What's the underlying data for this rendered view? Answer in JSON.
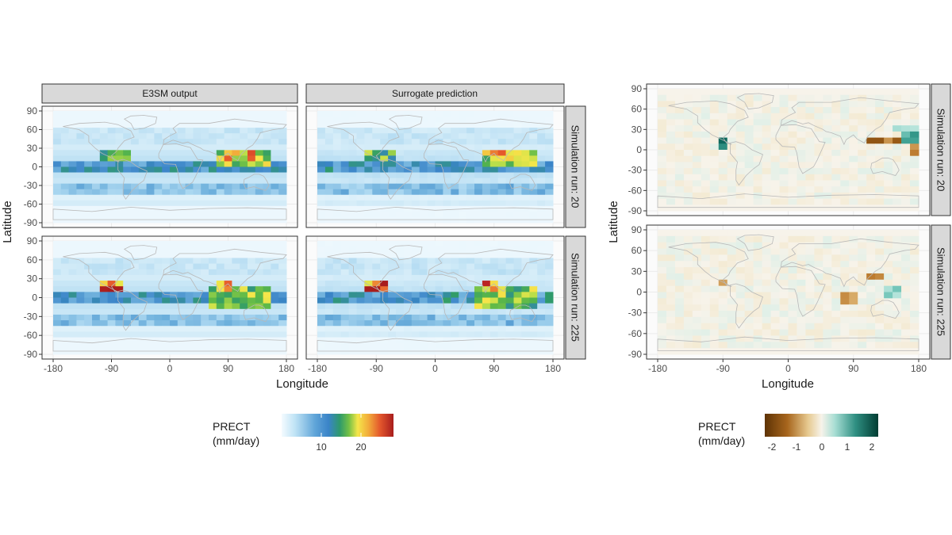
{
  "colors": {
    "panel_bg": "#fbfbfb",
    "grid": "#ebebeb",
    "strip_bg": "#d9d9d9",
    "border": "#333333",
    "coast": "#b8b8b8",
    "abs_scale": [
      "#f4fbff",
      "#d4ecf8",
      "#a9d6f0",
      "#6eb0dc",
      "#3a84c8",
      "#2f9a6b",
      "#5cb848",
      "#bfe04a",
      "#f5e64a",
      "#f2a93a",
      "#e65a2c",
      "#c02626",
      "#a81d1d"
    ],
    "diff_scale_neg": [
      "#f7f3ea",
      "#f1e2bd",
      "#dbb06f",
      "#b9772a",
      "#8a4f0f",
      "#5e3305"
    ],
    "diff_scale_pos": [
      "#f7f3ea",
      "#cbece5",
      "#82cfc3",
      "#3a9d8f",
      "#0e6d62",
      "#013d33"
    ]
  },
  "left_figure": {
    "column_strips": [
      "E3SM output",
      "Surrogate prediction"
    ],
    "row_strips": [
      "Simulation run: 20",
      "Simulation run: 225"
    ],
    "x_label": "Longitude",
    "y_label": "Latitude",
    "legend": {
      "title_line1": "PRECT",
      "title_line2": "(mm/day)",
      "tick_labels": [
        "10",
        "20"
      ]
    }
  },
  "right_figure": {
    "row_strips": [
      "Simulation run: 20",
      "Simulation run: 225"
    ],
    "x_label": "Longitude",
    "y_label": "Latitude",
    "legend": {
      "title_line1": "PRECT",
      "title_line2": "(mm/day)",
      "tick_labels": [
        "-2",
        "-1",
        "0",
        "1",
        "2"
      ]
    }
  },
  "chart_data": [
    {
      "type": "heatmap",
      "variable": "PRECT",
      "units": "mm/day",
      "facet_columns": [
        "E3SM output",
        "Surrogate prediction"
      ],
      "facet_rows": [
        "Simulation run: 20",
        "Simulation run: 225"
      ],
      "xlabel": "Longitude",
      "ylabel": "Latitude",
      "xlim": [
        -180,
        180
      ],
      "ylim": [
        -90,
        90
      ],
      "x_ticks": [
        -180,
        -90,
        0,
        90,
        180
      ],
      "x_tick_labels": [
        "-180",
        "-90",
        "0",
        "90",
        "180"
      ],
      "y_ticks": [
        -90,
        -60,
        -30,
        0,
        30,
        60,
        90
      ],
      "y_tick_labels": [
        "-90",
        "-60",
        "-30",
        "0",
        "30",
        "60",
        "90"
      ],
      "grid": true,
      "legend_position": "bottom",
      "color_limits": [
        0,
        28
      ],
      "legend_ticks": [
        10,
        20
      ],
      "regions": {
        "Simulation run: 20": [
          {
            "lon": [
              -180,
              180
            ],
            "lat": [
              -5,
              5
            ],
            "value": 9
          },
          {
            "lon": [
              -180,
              180
            ],
            "lat": [
              -45,
              -30
            ],
            "value": 6
          },
          {
            "lon": [
              -110,
              -65
            ],
            "lat": [
              5,
              25
            ],
            "value": 14
          },
          {
            "lon": [
              70,
              150
            ],
            "lat": [
              0,
              30
            ],
            "value": 16
          },
          {
            "lon": [
              90,
              130
            ],
            "lat": [
              5,
              25
            ],
            "value": 20
          },
          {
            "lon": [
              -30,
              20
            ],
            "lat": [
              0,
              10
            ],
            "value": 8
          },
          {
            "lon": [
              -180,
              180
            ],
            "lat": [
              35,
              60
            ],
            "value": 3
          }
        ],
        "Simulation run: 225": [
          {
            "lon": [
              -180,
              180
            ],
            "lat": [
              -5,
              5
            ],
            "value": 9
          },
          {
            "lon": [
              -180,
              180
            ],
            "lat": [
              -45,
              -30
            ],
            "value": 6
          },
          {
            "lon": [
              -105,
              -75
            ],
            "lat": [
              5,
              25
            ],
            "value": 24
          },
          {
            "lon": [
              75,
              95
            ],
            "lat": [
              10,
              30
            ],
            "value": 24
          },
          {
            "lon": [
              60,
              160
            ],
            "lat": [
              -15,
              20
            ],
            "value": 15
          },
          {
            "lon": [
              -180,
              180
            ],
            "lat": [
              35,
              60
            ],
            "value": 3
          }
        ]
      }
    },
    {
      "type": "heatmap",
      "variable": "PRECT",
      "units": "mm/day",
      "facet_rows": [
        "Simulation run: 20",
        "Simulation run: 225"
      ],
      "xlabel": "Longitude",
      "ylabel": "Latitude",
      "xlim": [
        -180,
        180
      ],
      "ylim": [
        -90,
        90
      ],
      "x_ticks": [
        -180,
        -90,
        0,
        90,
        180
      ],
      "x_tick_labels": [
        "-180",
        "-90",
        "0",
        "90",
        "180"
      ],
      "y_ticks": [
        -90,
        -60,
        -30,
        0,
        30,
        60,
        90
      ],
      "y_tick_labels": [
        "-90",
        "-60",
        "-30",
        "0",
        "30",
        "60",
        "90"
      ],
      "grid": true,
      "legend_position": "bottom",
      "color_limits": [
        -2.5,
        2.5
      ],
      "legend_ticks": [
        -2,
        -1,
        0,
        1,
        2
      ],
      "regions": {
        "Simulation run: 20": [
          {
            "lon": [
              -100,
              -85
            ],
            "lat": [
              0,
              15
            ],
            "value": 2
          },
          {
            "lon": [
              110,
              150
            ],
            "lat": [
              5,
              20
            ],
            "value": -2
          },
          {
            "lon": [
              160,
              180
            ],
            "lat": [
              10,
              25
            ],
            "value": 1.5
          },
          {
            "lon": [
              170,
              180
            ],
            "lat": [
              -5,
              5
            ],
            "value": -1.5
          },
          {
            "lon": [
              150,
              175
            ],
            "lat": [
              25,
              40
            ],
            "value": 1
          }
        ],
        "Simulation run: 225": [
          {
            "lon": [
              80,
              90
            ],
            "lat": [
              -10,
              0
            ],
            "value": 2.5
          },
          {
            "lon": [
              110,
              130
            ],
            "lat": [
              15,
              30
            ],
            "value": -1.8
          },
          {
            "lon": [
              70,
              100
            ],
            "lat": [
              -15,
              0
            ],
            "value": -1.2
          },
          {
            "lon": [
              -95,
              -85
            ],
            "lat": [
              5,
              15
            ],
            "value": -1.2
          },
          {
            "lon": [
              130,
              160
            ],
            "lat": [
              -10,
              10
            ],
            "value": 1
          }
        ]
      }
    }
  ]
}
